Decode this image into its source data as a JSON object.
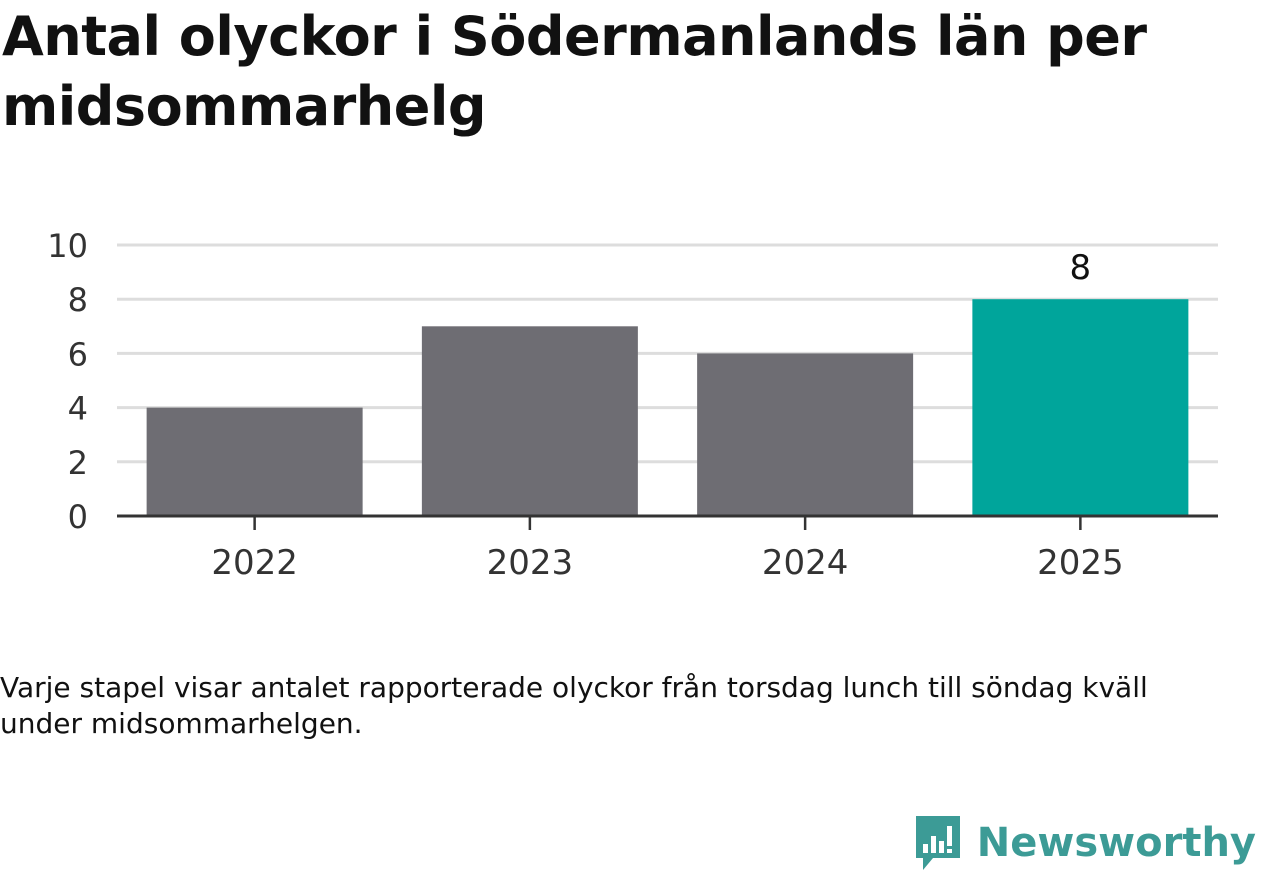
{
  "title": "Antal olyckor i Södermanlands län per midsommarhelg",
  "caption": "Varje stapel visar antalet rapporterade olyckor från torsdag lunch till söndag kväll under midsommarhelgen.",
  "brand": {
    "name": "Newsworthy",
    "icon": "newsworthy-logo-icon",
    "color": "#3c9b96"
  },
  "colors": {
    "bar": "#6e6d73",
    "highlight": "#00a59b",
    "grid": "#dddddd",
    "axis": "#333333"
  },
  "chart_data": {
    "type": "bar",
    "categories": [
      "2022",
      "2023",
      "2024",
      "2025"
    ],
    "values": [
      4,
      7,
      6,
      8
    ],
    "highlight_index": 3,
    "data_labels": [
      "",
      "",
      "",
      "8"
    ],
    "yticks": [
      0,
      2,
      4,
      6,
      8,
      10
    ],
    "ylim": [
      0,
      10
    ],
    "grid": true,
    "title": "Antal olyckor i Södermanlands län per midsommarhelg",
    "xlabel": "",
    "ylabel": ""
  }
}
